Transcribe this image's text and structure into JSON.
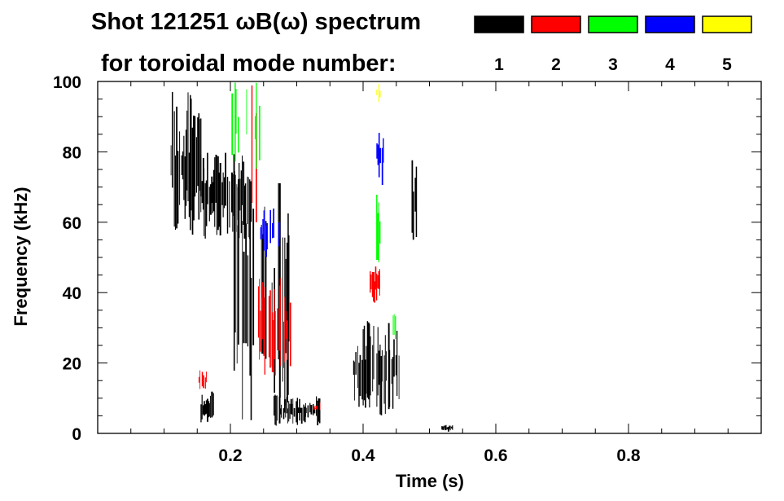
{
  "chart_data": {
    "type": "heatmap",
    "title_line1": "Shot 121251 ωB(ω) spectrum",
    "title_line2": "for toroidal mode number:",
    "xlabel": "Time (s)",
    "ylabel": "Frequency (kHz)",
    "xlim": [
      0.0,
      1.0
    ],
    "ylim": [
      0,
      100
    ],
    "x_ticks": [
      0.2,
      0.4,
      0.6,
      0.8
    ],
    "x_tick_labels": [
      "0.2",
      "0.4",
      "0.6",
      "0.8"
    ],
    "y_ticks": [
      0,
      20,
      40,
      60,
      80,
      100
    ],
    "y_tick_labels": [
      "0",
      "20",
      "40",
      "60",
      "80",
      "100"
    ],
    "legend": [
      {
        "label": "1",
        "color": "#000000"
      },
      {
        "label": "2",
        "color": "#ff0000"
      },
      {
        "label": "3",
        "color": "#00ff00"
      },
      {
        "label": "4",
        "color": "#0000ff"
      },
      {
        "label": "5",
        "color": "#ffff00"
      }
    ],
    "regions": [
      {
        "mode": "1",
        "t": [
          0.11,
          0.155
        ],
        "f": [
          55,
          98
        ],
        "density": 0.9
      },
      {
        "mode": "1",
        "t": [
          0.155,
          0.23
        ],
        "f": [
          55,
          80
        ],
        "density": 0.85
      },
      {
        "mode": "1",
        "t": [
          0.2,
          0.29
        ],
        "f": [
          0,
          75
        ],
        "density": 0.35
      },
      {
        "mode": "1",
        "t": [
          0.155,
          0.175
        ],
        "f": [
          3,
          12
        ],
        "density": 0.95
      },
      {
        "mode": "1",
        "t": [
          0.265,
          0.335
        ],
        "f": [
          2,
          11
        ],
        "density": 0.85
      },
      {
        "mode": "1",
        "t": [
          0.385,
          0.455
        ],
        "f": [
          5,
          32
        ],
        "density": 0.75
      },
      {
        "mode": "1",
        "t": [
          0.473,
          0.48
        ],
        "f": [
          52,
          78
        ],
        "density": 0.9
      },
      {
        "mode": "1",
        "t": [
          0.518,
          0.535
        ],
        "f": [
          0.5,
          2.5
        ],
        "density": 0.9
      },
      {
        "mode": "2",
        "t": [
          0.24,
          0.29
        ],
        "f": [
          15,
          45
        ],
        "density": 0.6
      },
      {
        "mode": "2",
        "t": [
          0.41,
          0.425
        ],
        "f": [
          37,
          48
        ],
        "density": 0.85
      },
      {
        "mode": "2",
        "t": [
          0.152,
          0.165
        ],
        "f": [
          12,
          18
        ],
        "density": 0.7
      },
      {
        "mode": "2",
        "t": [
          0.23,
          0.245
        ],
        "f": [
          60,
          100
        ],
        "density": 0.25
      },
      {
        "mode": "2",
        "t": [
          0.325,
          0.335
        ],
        "f": [
          6,
          9
        ],
        "density": 0.7
      },
      {
        "mode": "3",
        "t": [
          0.2,
          0.25
        ],
        "f": [
          75,
          100
        ],
        "density": 0.45
      },
      {
        "mode": "3",
        "t": [
          0.415,
          0.425
        ],
        "f": [
          48,
          68
        ],
        "density": 0.8
      },
      {
        "mode": "3",
        "t": [
          0.44,
          0.448
        ],
        "f": [
          25,
          34
        ],
        "density": 0.6
      },
      {
        "mode": "4",
        "t": [
          0.245,
          0.275
        ],
        "f": [
          50,
          64
        ],
        "density": 0.5
      },
      {
        "mode": "4",
        "t": [
          0.42,
          0.43
        ],
        "f": [
          70,
          88
        ],
        "density": 0.8
      },
      {
        "mode": "5",
        "t": [
          0.42,
          0.426
        ],
        "f": [
          94,
          100
        ],
        "density": 0.8
      }
    ]
  }
}
